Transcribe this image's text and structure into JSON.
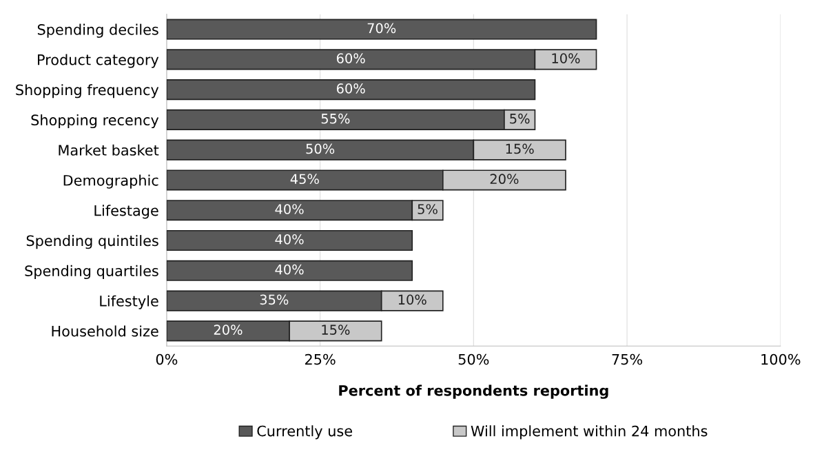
{
  "chart_data": {
    "type": "bar",
    "orientation": "horizontal",
    "stacked": true,
    "categories": [
      "Spending deciles",
      "Product category",
      "Shopping frequency",
      "Shopping recency",
      "Market basket",
      "Demographic",
      "Lifestage",
      "Spending quintiles",
      "Spending quartiles",
      "Lifestyle",
      "Household size"
    ],
    "series": [
      {
        "name": "Currently use",
        "color": "#595959",
        "values": [
          70,
          60,
          60,
          55,
          50,
          45,
          40,
          40,
          40,
          35,
          20
        ],
        "value_labels": [
          "70%",
          "60%",
          "60%",
          "55%",
          "50%",
          "45%",
          "40%",
          "40%",
          "40%",
          "35%",
          "20%"
        ]
      },
      {
        "name": "Will implement within 24 months",
        "color": "#c8c8c8",
        "values": [
          null,
          10,
          null,
          5,
          15,
          20,
          5,
          null,
          null,
          10,
          15
        ],
        "value_labels": [
          null,
          "10%",
          null,
          "5%",
          "15%",
          "20%",
          "5%",
          null,
          null,
          "10%",
          "15%"
        ]
      }
    ],
    "xlim": [
      0,
      100
    ],
    "xticks": [
      {
        "value": 0,
        "label": "0%"
      },
      {
        "value": 25,
        "label": "25%"
      },
      {
        "value": 50,
        "label": "50%"
      },
      {
        "value": 75,
        "label": "75%"
      },
      {
        "value": 100,
        "label": "100%"
      }
    ],
    "xlabel": "Percent of respondents reporting",
    "grid": "x",
    "legend": "bottom"
  }
}
